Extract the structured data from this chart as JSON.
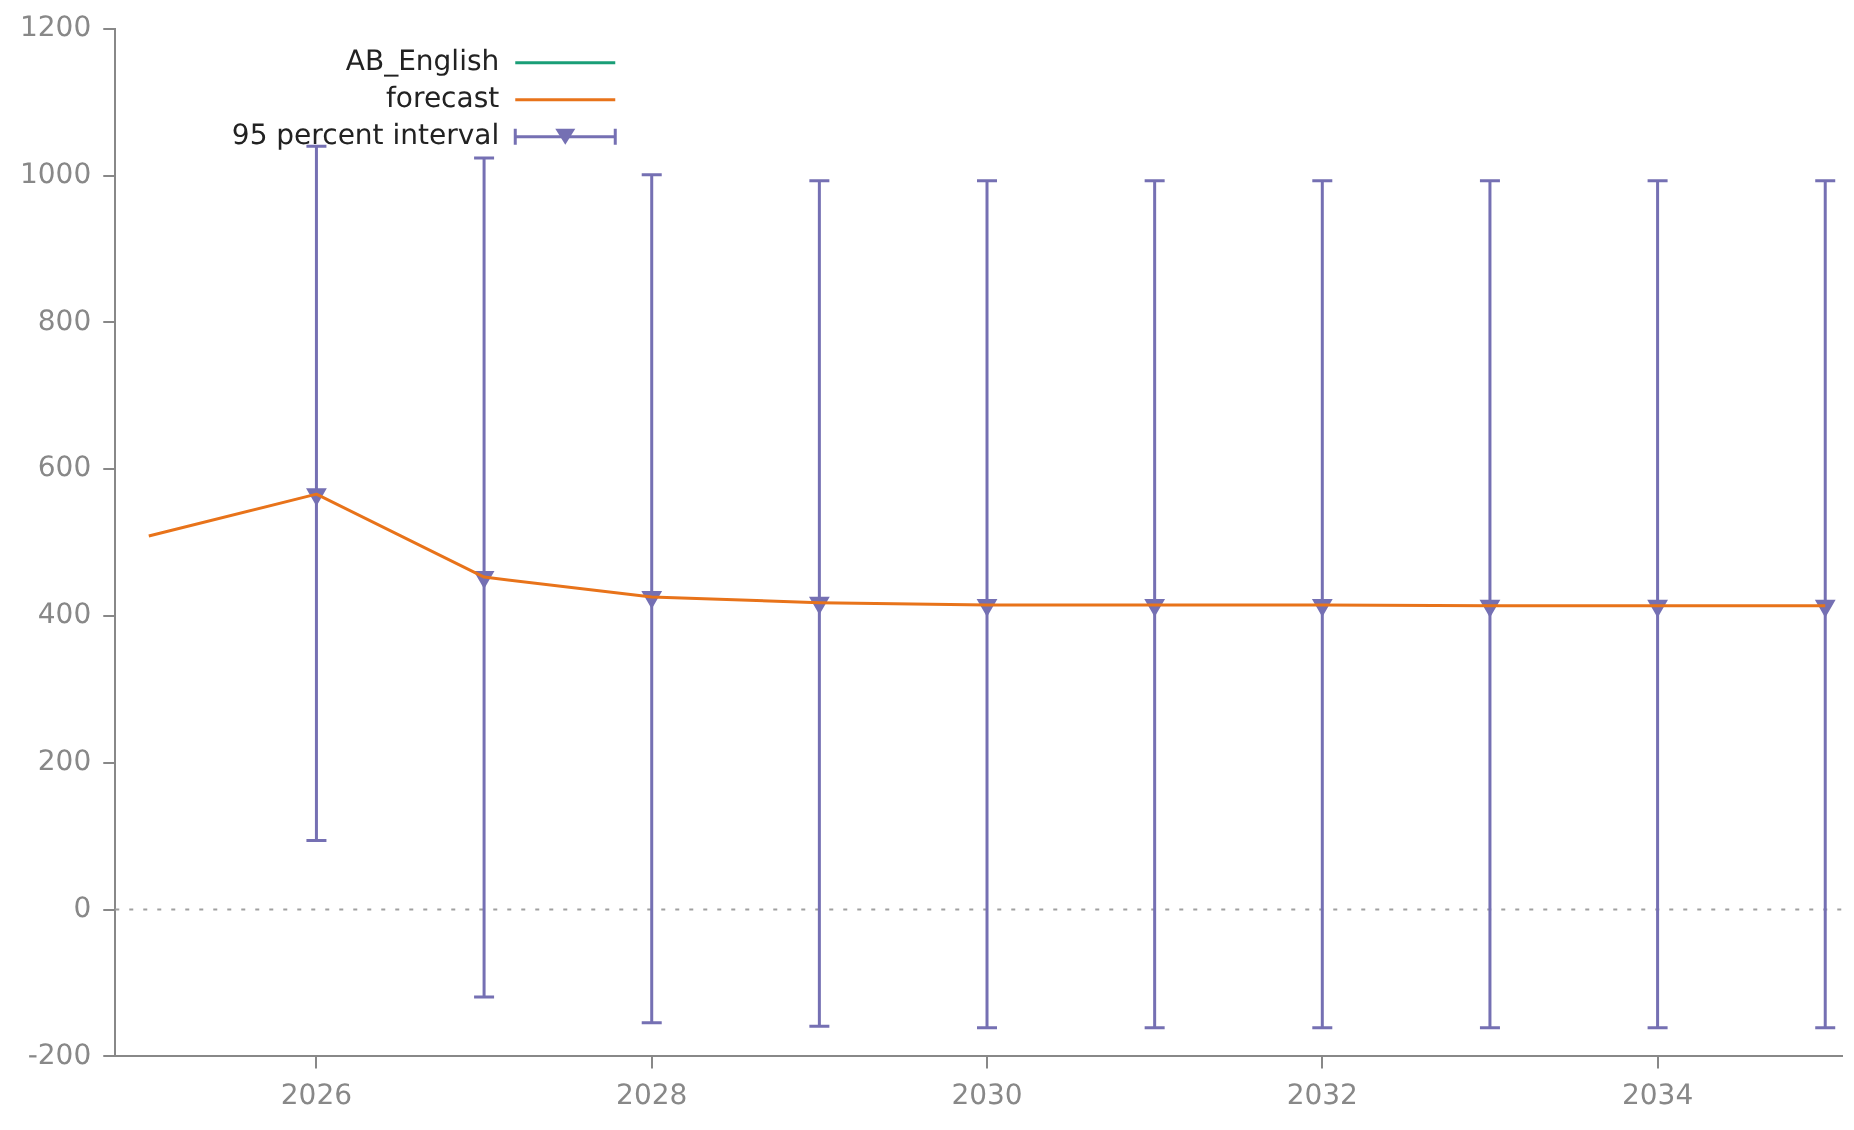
{
  "chart_data": {
    "type": "line",
    "xlim": [
      2024.8,
      2035.1
    ],
    "xticks": [
      2026,
      2028,
      2030,
      2032,
      2034
    ],
    "ylim": [
      -200,
      1200
    ],
    "yticks": [
      -200,
      0,
      200,
      400,
      600,
      800,
      1000,
      1200
    ],
    "legend": "top left",
    "line_style": "solid",
    "x": [
      2025,
      2026,
      2027,
      2028,
      2029,
      2030,
      2031,
      2032,
      2033,
      2034,
      2035
    ],
    "series": [
      {
        "name": "AB_English",
        "color": "#1a9e77",
        "type": "line",
        "values": [
          null,
          null,
          null,
          null,
          null,
          null,
          null,
          null,
          null,
          null,
          null
        ]
      },
      {
        "name": "forecast",
        "color": "#e8731a",
        "type": "line",
        "values": [
          509,
          566,
          453,
          426,
          418,
          415,
          415,
          415,
          414,
          414,
          414
        ]
      },
      {
        "name": "95 percent interval",
        "color": "#7570b3",
        "type": "scatter",
        "marker": "triangle",
        "x": [
          2026,
          2027,
          2028,
          2029,
          2030,
          2031,
          2032,
          2033,
          2034,
          2035
        ],
        "values": [
          566,
          453,
          426,
          418,
          415,
          415,
          415,
          414,
          414,
          414
        ],
        "errors": [
          [
            94,
            1040
          ],
          [
            -119,
            1024
          ],
          [
            -154,
            1001
          ],
          [
            -159,
            993
          ],
          [
            -161,
            993
          ],
          [
            -161,
            993
          ],
          [
            -161,
            993
          ],
          [
            -161,
            993
          ],
          [
            -161,
            993
          ],
          [
            -161,
            993
          ]
        ]
      }
    ],
    "ref_lines": [
      {
        "axis": "y",
        "value": 0,
        "color": "#a0a0a0",
        "line_style": "dotted"
      }
    ]
  }
}
